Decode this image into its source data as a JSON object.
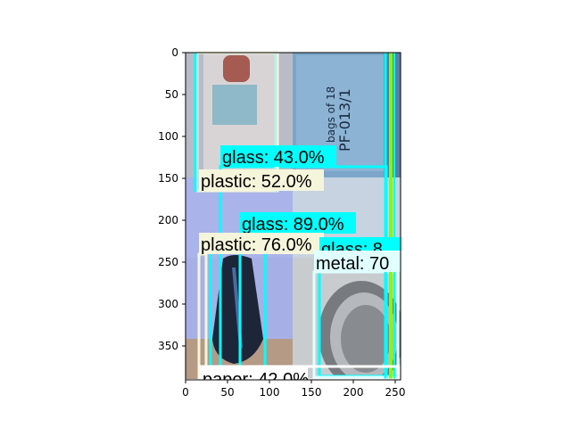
{
  "axes": {
    "x_ticks": [
      "0",
      "50",
      "100",
      "150",
      "200",
      "250"
    ],
    "y_ticks": [
      "0",
      "50",
      "100",
      "150",
      "200",
      "250",
      "300",
      "350"
    ]
  },
  "detections": [
    {
      "label": "glass: 43.0%",
      "box_color": "#00ffff",
      "label_bg": "#00ffff"
    },
    {
      "label": "plastic: 52.0%",
      "box_color": "#f5f5dc",
      "label_bg": "#f5f5dc"
    },
    {
      "label": "glass: 89.0%",
      "box_color": "#00ffff",
      "label_bg": "#00ffff"
    },
    {
      "label": "plastic: 76.0%",
      "box_color": "#f5f5dc",
      "label_bg": "#f5f5dc"
    },
    {
      "label": "glass: 8",
      "box_color": "#00ffff",
      "label_bg": "#00ffff"
    },
    {
      "label": "metal: 70",
      "box_color": "#e0ffff",
      "label_bg": "#e0ffff"
    },
    {
      "label": "paper: 42.0%",
      "box_color": "#ffffff",
      "label_bg": "#ffffff"
    }
  ],
  "colors": {
    "glass": "#00ffff",
    "plastic": "#f5f5dc",
    "metal": "#e0ffff",
    "paper": "#ffffff",
    "green_line": "#7fff00"
  }
}
